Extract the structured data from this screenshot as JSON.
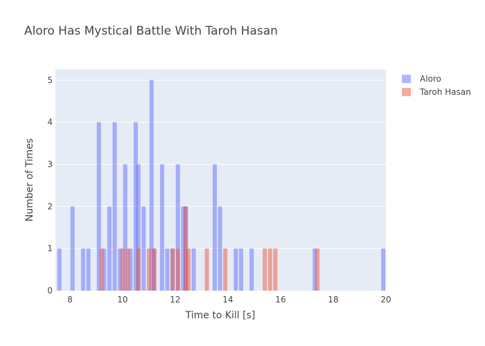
{
  "chart_data": {
    "type": "bar",
    "title": "Aloro Has Mystical Battle With Taroh Hasan",
    "xlabel": "Time to Kill [s]",
    "ylabel": "Number of Times",
    "xlim": [
      7.45,
      20
    ],
    "ylim": [
      0,
      5.26
    ],
    "x_ticks": [
      8,
      10,
      12,
      14,
      16,
      18,
      20
    ],
    "y_ticks": [
      0,
      1,
      2,
      3,
      4,
      5
    ],
    "bin_width": 0.16,
    "barmode": "overlay",
    "grid": true,
    "legend_position": "top-right",
    "series": [
      {
        "name": "Aloro",
        "color": "#636efa",
        "opacity": 0.5,
        "bins": [
          {
            "x": 7.6,
            "y": 1
          },
          {
            "x": 8.1,
            "y": 2
          },
          {
            "x": 8.5,
            "y": 1
          },
          {
            "x": 8.7,
            "y": 1
          },
          {
            "x": 9.1,
            "y": 4
          },
          {
            "x": 9.3,
            "y": 1
          },
          {
            "x": 9.5,
            "y": 2
          },
          {
            "x": 9.7,
            "y": 4
          },
          {
            "x": 9.9,
            "y": 1
          },
          {
            "x": 10.1,
            "y": 3
          },
          {
            "x": 10.3,
            "y": 1
          },
          {
            "x": 10.5,
            "y": 4
          },
          {
            "x": 10.6,
            "y": 3
          },
          {
            "x": 10.8,
            "y": 2
          },
          {
            "x": 11.1,
            "y": 5
          },
          {
            "x": 11.2,
            "y": 1
          },
          {
            "x": 11.5,
            "y": 3
          },
          {
            "x": 11.7,
            "y": 1
          },
          {
            "x": 11.9,
            "y": 1
          },
          {
            "x": 12.1,
            "y": 3
          },
          {
            "x": 12.3,
            "y": 2
          },
          {
            "x": 12.4,
            "y": 2
          },
          {
            "x": 12.7,
            "y": 1
          },
          {
            "x": 13.5,
            "y": 3
          },
          {
            "x": 13.7,
            "y": 2
          },
          {
            "x": 14.3,
            "y": 1
          },
          {
            "x": 14.5,
            "y": 1
          },
          {
            "x": 14.9,
            "y": 1
          },
          {
            "x": 17.3,
            "y": 1
          },
          {
            "x": 19.9,
            "y": 1
          }
        ]
      },
      {
        "name": "Taroh Hasan",
        "color": "#ef553b",
        "opacity": 0.5,
        "bins": [
          {
            "x": 9.2,
            "y": 1
          },
          {
            "x": 10.0,
            "y": 1
          },
          {
            "x": 10.2,
            "y": 1
          },
          {
            "x": 10.6,
            "y": 1
          },
          {
            "x": 11.0,
            "y": 1
          },
          {
            "x": 11.2,
            "y": 1
          },
          {
            "x": 11.9,
            "y": 1
          },
          {
            "x": 12.1,
            "y": 1
          },
          {
            "x": 12.4,
            "y": 2
          },
          {
            "x": 12.5,
            "y": 1
          },
          {
            "x": 13.2,
            "y": 1
          },
          {
            "x": 13.9,
            "y": 1
          },
          {
            "x": 15.4,
            "y": 1
          },
          {
            "x": 15.6,
            "y": 1
          },
          {
            "x": 15.8,
            "y": 1
          },
          {
            "x": 17.4,
            "y": 1
          }
        ]
      }
    ]
  }
}
